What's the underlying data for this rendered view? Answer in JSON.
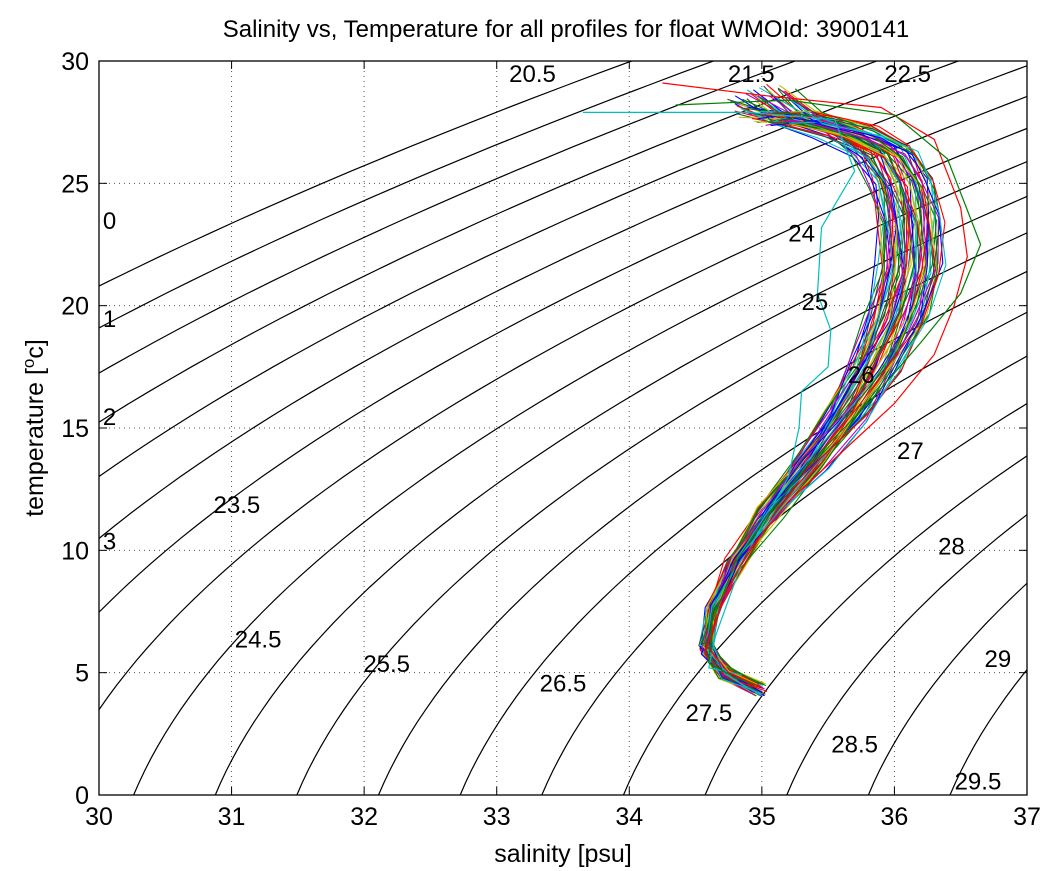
{
  "chart_data": {
    "type": "line",
    "title": "Salinity vs, Temperature for all profiles for float WMOId: 3900141",
    "xlabel": "salinity [psu]",
    "ylabel_main": "temperature [",
    "ylabel_sup": "o",
    "ylabel_end": "c]",
    "xlim": [
      30,
      37
    ],
    "ylim": [
      0,
      30
    ],
    "x_ticks": [
      "30",
      "31",
      "32",
      "33",
      "34",
      "35",
      "36",
      "37"
    ],
    "y_ticks": [
      "0",
      "5",
      "10",
      "15",
      "20",
      "25",
      "30"
    ],
    "grid": true,
    "density_contours": {
      "levels": [
        -3,
        -2.5,
        -2,
        -1.5,
        -1,
        -0.5,
        0,
        0.5,
        1,
        1.5,
        2,
        2.5,
        3,
        3.5,
        4,
        4.5,
        5,
        5.5,
        20.5,
        21,
        21.5,
        22,
        22.5,
        23,
        23.5,
        24,
        24.5,
        25,
        25.5,
        26,
        26.5,
        27,
        27.5,
        28,
        28.5,
        29,
        29.5
      ],
      "labels": [
        {
          "text": "20.5",
          "s": 33.27,
          "t": 29.5
        },
        {
          "text": "21.5",
          "s": 34.92,
          "t": 29.5
        },
        {
          "text": "22.5",
          "s": 36.1,
          "t": 29.5
        },
        {
          "text": "0",
          "s": 30.08,
          "t": 23.5
        },
        {
          "text": "24",
          "s": 35.3,
          "t": 23.0
        },
        {
          "text": "25",
          "s": 35.4,
          "t": 20.2
        },
        {
          "text": "1",
          "s": 30.08,
          "t": 19.5
        },
        {
          "text": "26",
          "s": 35.75,
          "t": 17.2
        },
        {
          "text": "2",
          "s": 30.08,
          "t": 15.5
        },
        {
          "text": "27",
          "s": 36.12,
          "t": 14.1
        },
        {
          "text": "23.5",
          "s": 31.04,
          "t": 11.9
        },
        {
          "text": "3",
          "s": 30.08,
          "t": 10.4
        },
        {
          "text": "28",
          "s": 36.43,
          "t": 10.2
        },
        {
          "text": "24.5",
          "s": 31.2,
          "t": 6.4
        },
        {
          "text": "29",
          "s": 36.78,
          "t": 5.6
        },
        {
          "text": "25.5",
          "s": 32.17,
          "t": 5.4
        },
        {
          "text": "26.5",
          "s": 33.5,
          "t": 4.6
        },
        {
          "text": "27.5",
          "s": 34.6,
          "t": 3.4
        },
        {
          "text": "28.5",
          "s": 35.7,
          "t": 2.1
        },
        {
          "text": "29.5",
          "s": 36.63,
          "t": 0.6
        }
      ]
    },
    "profile_colors": [
      "#0000ff",
      "#008000",
      "#ff0000",
      "#00bfbf",
      "#bf00bf",
      "#bfbf00",
      "#404040"
    ],
    "profile_template": [
      {
        "s": 34.98,
        "t": 4.3
      },
      {
        "s": 34.72,
        "t": 5.0
      },
      {
        "s": 34.58,
        "t": 6.0
      },
      {
        "s": 34.63,
        "t": 7.5
      },
      {
        "s": 34.8,
        "t": 9.5
      },
      {
        "s": 35.05,
        "t": 11.5
      },
      {
        "s": 35.35,
        "t": 13.5
      },
      {
        "s": 35.63,
        "t": 15.5
      },
      {
        "s": 35.85,
        "t": 17.5
      },
      {
        "s": 36.02,
        "t": 19.5
      },
      {
        "s": 36.12,
        "t": 21.5
      },
      {
        "s": 36.12,
        "t": 23.5
      },
      {
        "s": 36.06,
        "t": 25.0
      },
      {
        "s": 35.92,
        "t": 26.3
      },
      {
        "s": 35.65,
        "t": 27.1
      },
      {
        "s": 35.25,
        "t": 27.7
      },
      {
        "s": 35.0,
        "t": 28.2
      }
    ],
    "profile_count": 60,
    "special_profiles": [
      {
        "color": "#00bfbf",
        "points": [
          {
            "s": 33.65,
            "t": 27.9
          },
          {
            "s": 34.9,
            "t": 27.9
          },
          {
            "s": 35.55,
            "t": 27.6
          },
          {
            "s": 35.7,
            "t": 25.5
          },
          {
            "s": 35.45,
            "t": 23.2
          },
          {
            "s": 35.42,
            "t": 20.5
          },
          {
            "s": 35.52,
            "t": 19.0
          },
          {
            "s": 35.5,
            "t": 17.5
          },
          {
            "s": 35.3,
            "t": 16.5
          },
          {
            "s": 35.28,
            "t": 15.0
          },
          {
            "s": 35.2,
            "t": 13.0
          },
          {
            "s": 35.0,
            "t": 11.0
          },
          {
            "s": 34.85,
            "t": 9.5
          },
          {
            "s": 34.75,
            "t": 8.0
          },
          {
            "s": 34.65,
            "t": 6.5
          },
          {
            "s": 34.6,
            "t": 5.2
          },
          {
            "s": 34.85,
            "t": 4.9
          }
        ]
      },
      {
        "color": "#ff0000",
        "points": [
          {
            "s": 34.25,
            "t": 29.1
          },
          {
            "s": 35.0,
            "t": 28.6
          },
          {
            "s": 35.9,
            "t": 28.1
          },
          {
            "s": 36.3,
            "t": 26.8
          },
          {
            "s": 36.5,
            "t": 24.0
          },
          {
            "s": 36.55,
            "t": 22.0
          },
          {
            "s": 36.45,
            "t": 20.0
          },
          {
            "s": 36.3,
            "t": 18.0
          },
          {
            "s": 36.0,
            "t": 16.0
          },
          {
            "s": 35.6,
            "t": 14.0
          },
          {
            "s": 35.2,
            "t": 12.0
          },
          {
            "s": 34.9,
            "t": 10.0
          },
          {
            "s": 34.7,
            "t": 8.0
          },
          {
            "s": 34.6,
            "t": 6.0
          },
          {
            "s": 34.75,
            "t": 5.0
          },
          {
            "s": 35.0,
            "t": 4.4
          }
        ]
      },
      {
        "color": "#008000",
        "points": [
          {
            "s": 34.35,
            "t": 28.2
          },
          {
            "s": 35.2,
            "t": 28.4
          },
          {
            "s": 36.0,
            "t": 27.8
          },
          {
            "s": 36.4,
            "t": 26.0
          },
          {
            "s": 36.65,
            "t": 22.5
          },
          {
            "s": 36.5,
            "t": 20.5
          },
          {
            "s": 36.2,
            "t": 18.5
          },
          {
            "s": 35.8,
            "t": 16.0
          },
          {
            "s": 35.35,
            "t": 13.5
          },
          {
            "s": 35.05,
            "t": 11.5
          },
          {
            "s": 34.8,
            "t": 9.5
          },
          {
            "s": 34.62,
            "t": 7.0
          },
          {
            "s": 34.6,
            "t": 5.4
          },
          {
            "s": 34.8,
            "t": 4.8
          },
          {
            "s": 34.95,
            "t": 4.5
          }
        ]
      }
    ]
  }
}
